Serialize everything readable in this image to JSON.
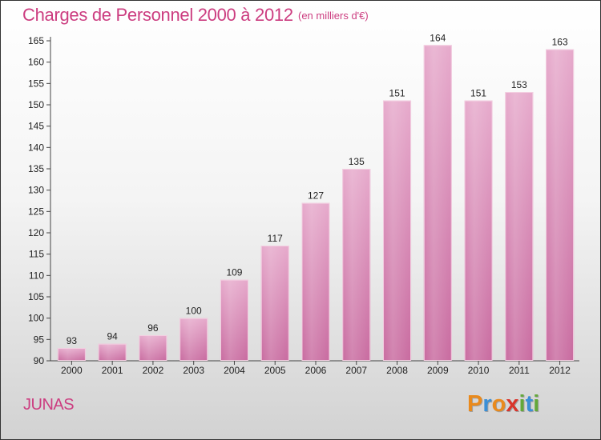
{
  "header": {
    "title": "Charges de Personnel 2000 à 2012",
    "subtitle": "(en milliers d'€)"
  },
  "commune": "JUNAS",
  "logo": {
    "text": "Proxiti",
    "letters": [
      {
        "ch": "P",
        "color": "#e98a1d"
      },
      {
        "ch": "r",
        "color": "#3a8fd6"
      },
      {
        "ch": "o",
        "color": "#e98a1d"
      },
      {
        "ch": "x",
        "color": "#d9342b"
      },
      {
        "ch": "i",
        "color": "#63a83a"
      },
      {
        "ch": "t",
        "color": "#3a8fd6"
      },
      {
        "ch": "i",
        "color": "#63a83a"
      }
    ]
  },
  "chart_data": {
    "type": "bar",
    "title": "Charges de Personnel 2000 à 2012",
    "subtitle": "(en milliers d'€)",
    "categories": [
      "2000",
      "2001",
      "2002",
      "2003",
      "2004",
      "2005",
      "2006",
      "2007",
      "2008",
      "2009",
      "2010",
      "2011",
      "2012"
    ],
    "values": [
      93,
      94,
      96,
      100,
      109,
      117,
      127,
      135,
      151,
      164,
      151,
      153,
      163
    ],
    "ylim": [
      90,
      165
    ],
    "yticks": [
      90,
      95,
      100,
      105,
      110,
      115,
      120,
      125,
      130,
      135,
      140,
      145,
      150,
      155,
      160,
      165
    ],
    "grid": false,
    "bar_color": "#c86a9f",
    "bar_color_light": "#e6a9cb"
  }
}
